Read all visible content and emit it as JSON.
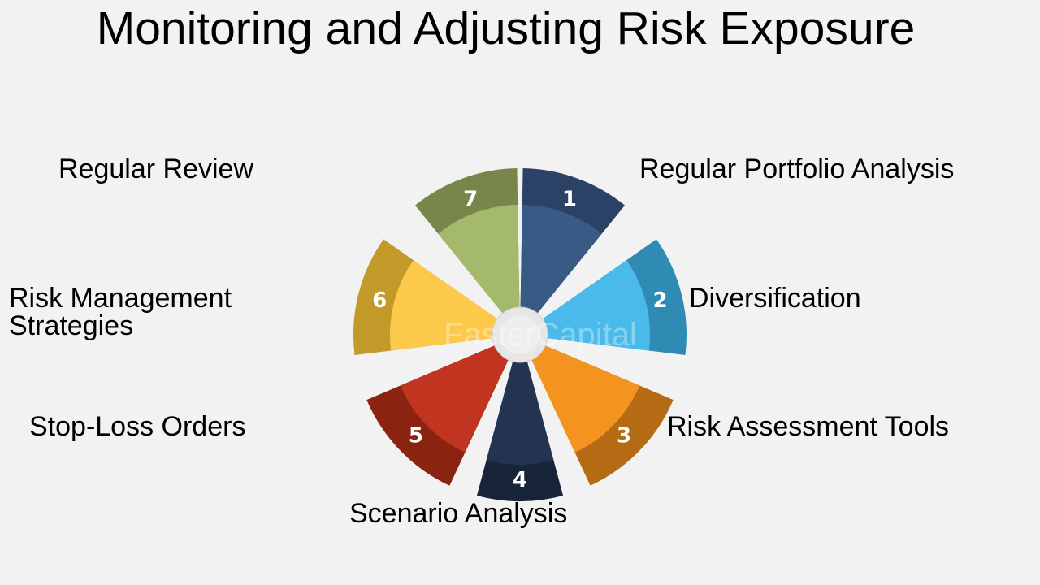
{
  "title": "Monitoring and Adjusting Risk Exposure",
  "watermark": "FasterCapital",
  "segments": [
    {
      "number": "1",
      "label": "Regular Portfolio Analysis",
      "outer_color": "#2b4166",
      "inner_color": "#3a5a86"
    },
    {
      "number": "2",
      "label": "Diversification",
      "outer_color": "#2f8bb3",
      "inner_color": "#49baea"
    },
    {
      "number": "3",
      "label": "Risk Assessment Tools",
      "outer_color": "#b56a14",
      "inner_color": "#f39420"
    },
    {
      "number": "4",
      "label": "Scenario Analysis",
      "outer_color": "#18243a",
      "inner_color": "#22344f"
    },
    {
      "number": "5",
      "label": "Stop-Loss Orders",
      "outer_color": "#8a2310",
      "inner_color": "#c13420"
    },
    {
      "number": "6",
      "label": "Risk Management",
      "label2": "Strategies",
      "outer_color": "#c29a2a",
      "inner_color": "#fdc94a"
    },
    {
      "number": "7",
      "label": "Regular Review",
      "outer_color": "#77864a",
      "inner_color": "#a4b96b"
    }
  ]
}
